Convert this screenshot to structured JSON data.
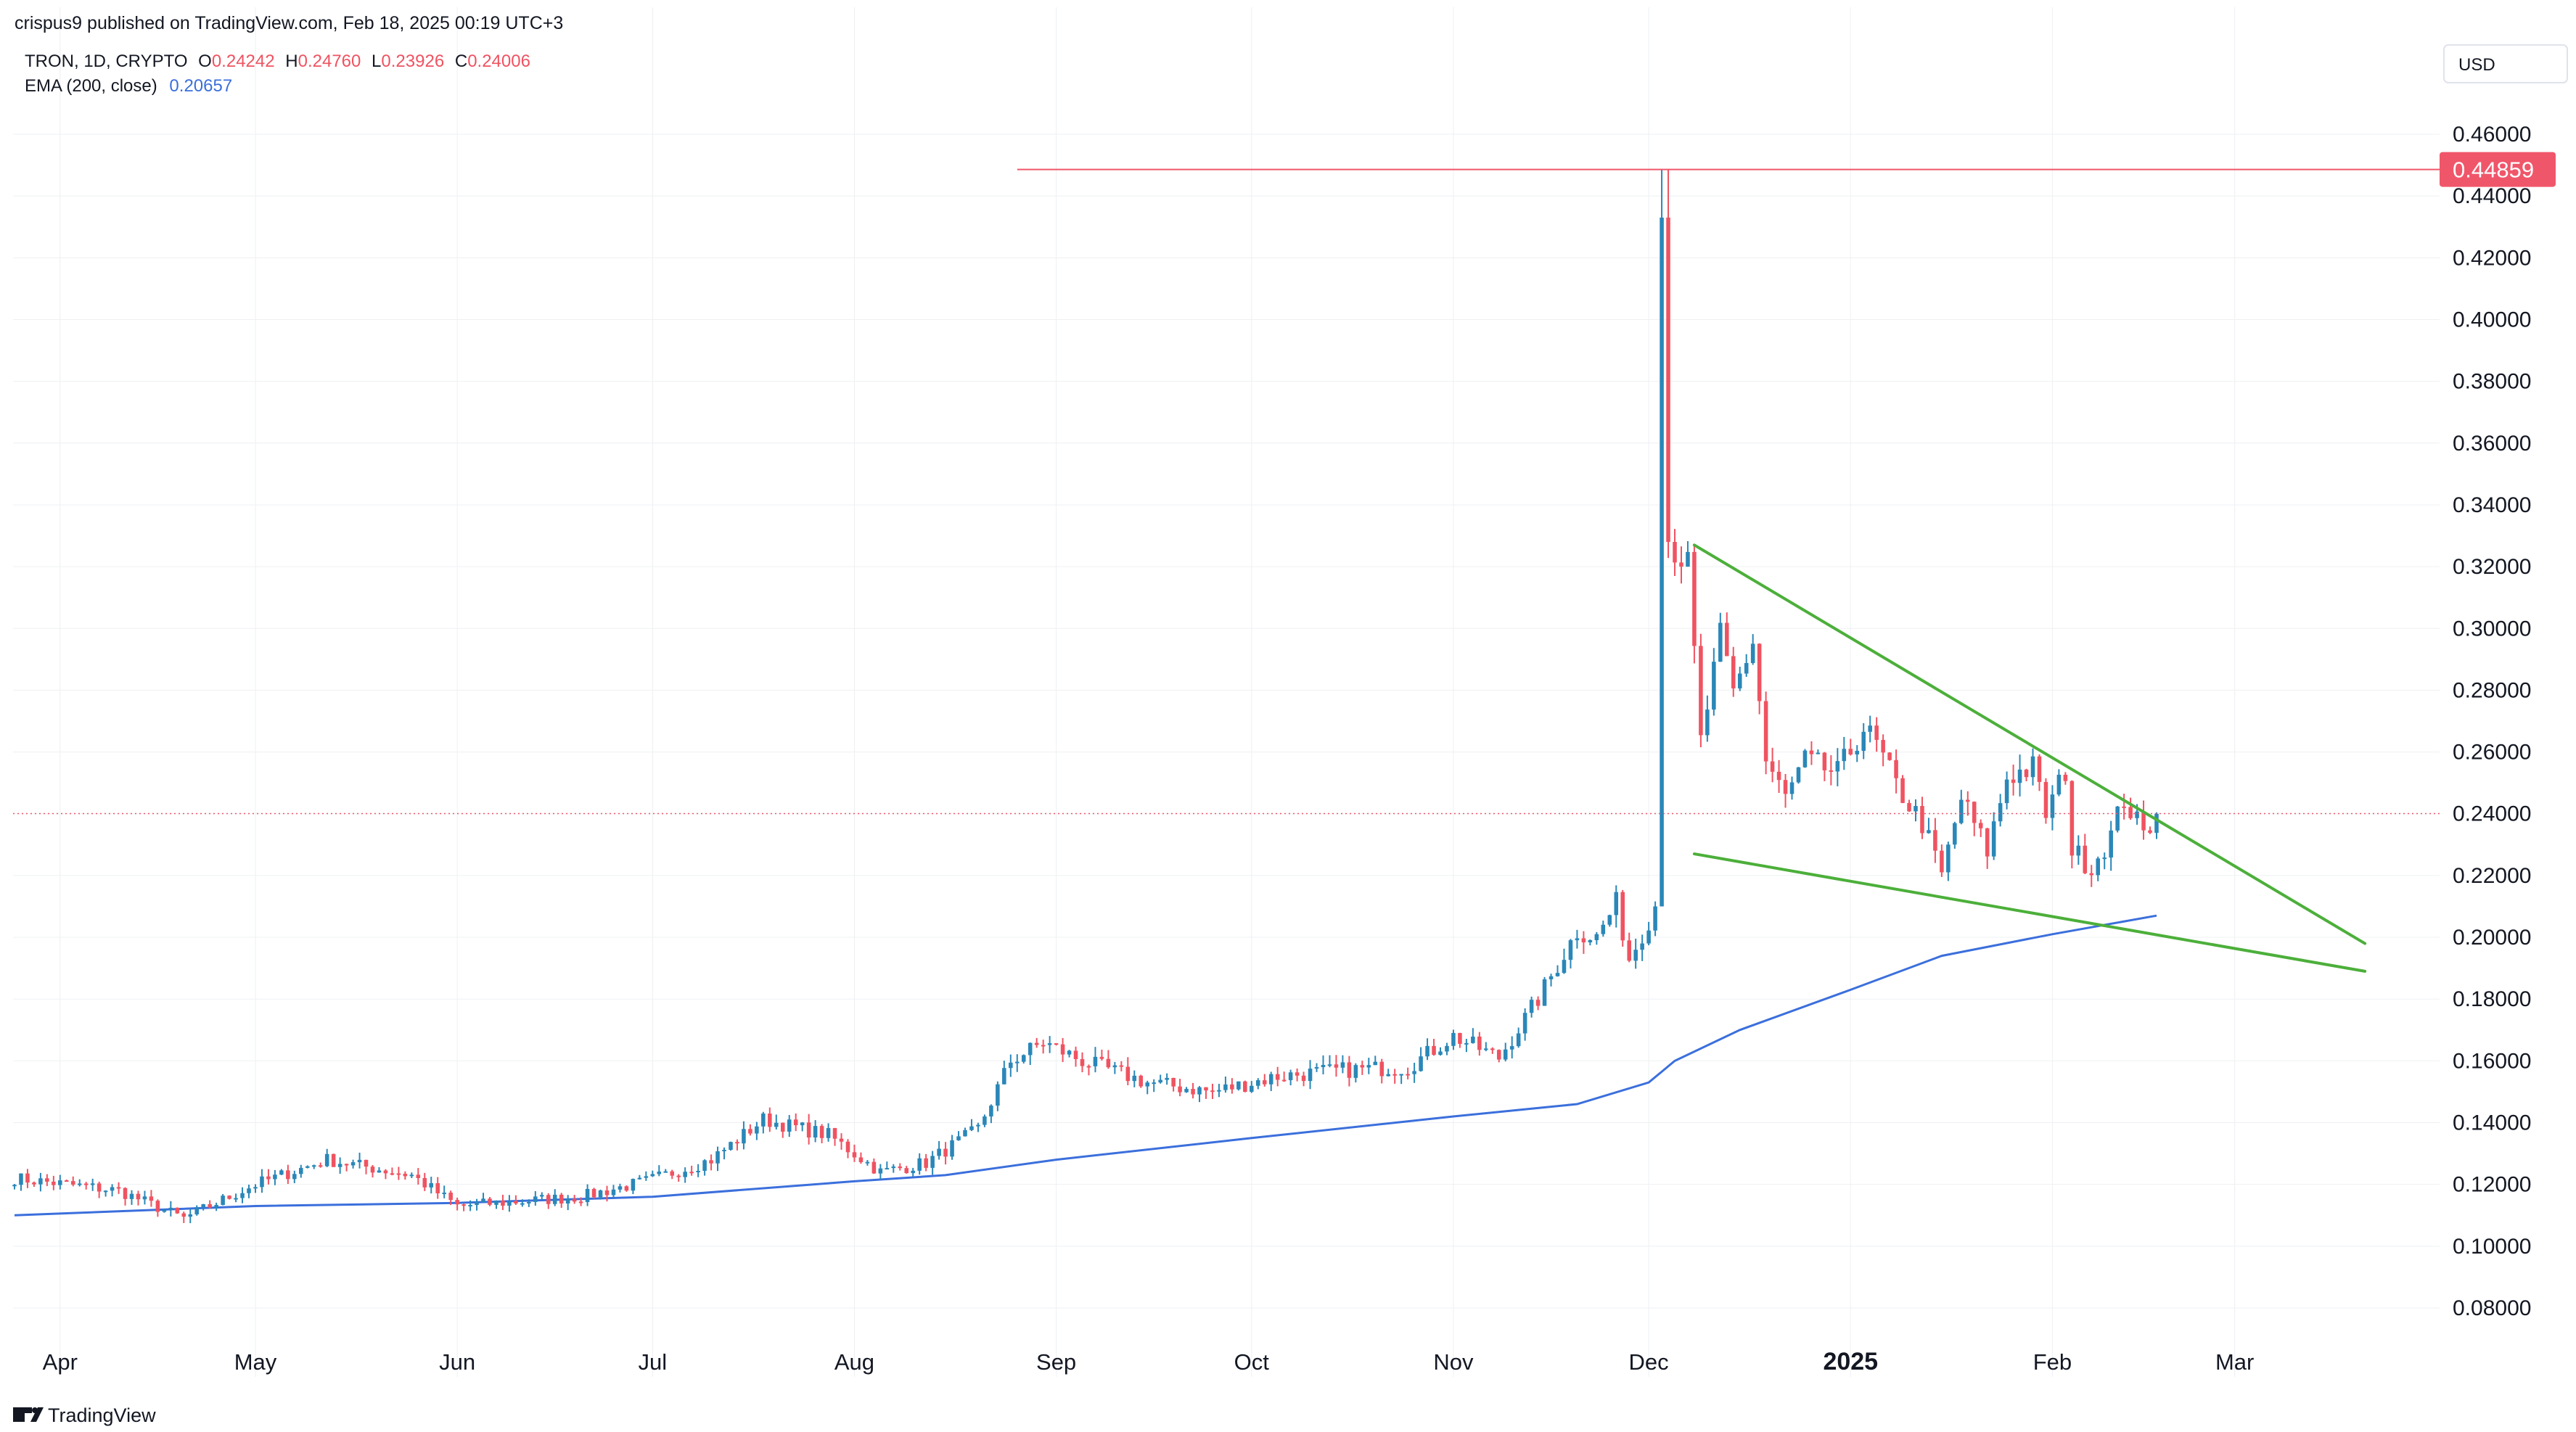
{
  "header": {
    "published": "crispus9 published on TradingView.com, Feb 18, 2025 00:19 UTC+3",
    "symbol": "TRON, 1D, CRYPTO",
    "o_label": "O",
    "o_value": "0.24242",
    "h_label": "H",
    "h_value": "0.24760",
    "l_label": "L",
    "l_value": "0.23926",
    "c_label": "C",
    "c_value": "0.24006",
    "ema_label": "EMA (200, close)",
    "ema_value": "0.20657"
  },
  "currency": "USD",
  "footer": {
    "brand": "TradingView"
  },
  "colors": {
    "up": "#2a87b8",
    "down": "#ef5361",
    "ema": "#3b6fdc",
    "trend": "#4caf3a",
    "resistance": "#f0566a",
    "grid": "#eef0f3"
  },
  "chart_data": {
    "type": "candlestick",
    "x_axis": {
      "labels": [
        "Apr",
        "May",
        "Jun",
        "Jul",
        "Aug",
        "Sep",
        "Oct",
        "Nov",
        "Dec",
        "2025",
        "Feb",
        "Mar"
      ],
      "bold": [
        "2025"
      ]
    },
    "y_axis": {
      "ticks": [
        "0.46000",
        "0.44000",
        "0.42000",
        "0.40000",
        "0.38000",
        "0.36000",
        "0.34000",
        "0.32000",
        "0.30000",
        "0.28000",
        "0.26000",
        "0.24000",
        "0.22000",
        "0.20000",
        "0.18000",
        "0.16000",
        "0.14000",
        "0.12000",
        "0.10000",
        "0.08000"
      ],
      "range": [
        0.07,
        0.47
      ]
    },
    "resistance": {
      "value": 0.44859,
      "label": "0.44859",
      "start_date": "2024-08-26"
    },
    "last_close": 0.24006,
    "ema200": {
      "name": "EMA (200, close)",
      "points": [
        [
          "2024-03-25",
          0.11
        ],
        [
          "2024-05-01",
          0.113
        ],
        [
          "2024-06-01",
          0.114
        ],
        [
          "2024-07-01",
          0.116
        ],
        [
          "2024-08-01",
          0.121
        ],
        [
          "2024-08-15",
          0.123
        ],
        [
          "2024-09-01",
          0.128
        ],
        [
          "2024-10-01",
          0.135
        ],
        [
          "2024-11-01",
          0.142
        ],
        [
          "2024-11-20",
          0.146
        ],
        [
          "2024-12-01",
          0.153
        ],
        [
          "2024-12-05",
          0.16
        ],
        [
          "2024-12-15",
          0.17
        ],
        [
          "2025-01-01",
          0.183
        ],
        [
          "2025-01-15",
          0.194
        ],
        [
          "2025-02-01",
          0.201
        ],
        [
          "2025-02-17",
          0.207
        ]
      ]
    },
    "trendlines": [
      {
        "name": "upper",
        "from": [
          "2024-12-08",
          0.327
        ],
        "to": [
          "2025-03-21",
          0.198
        ]
      },
      {
        "name": "lower",
        "from": [
          "2024-12-08",
          0.227
        ],
        "to": [
          "2025-03-21",
          0.189
        ]
      }
    ],
    "anchors": [
      [
        "2024-03-25",
        0.122
      ],
      [
        "2024-04-10",
        0.118
      ],
      [
        "2024-04-20",
        0.109
      ],
      [
        "2024-05-01",
        0.12
      ],
      [
        "2024-05-12",
        0.128
      ],
      [
        "2024-05-25",
        0.123
      ],
      [
        "2024-06-01",
        0.113
      ],
      [
        "2024-06-20",
        0.116
      ],
      [
        "2024-06-30",
        0.121
      ],
      [
        "2024-07-10",
        0.128
      ],
      [
        "2024-07-18",
        0.141
      ],
      [
        "2024-07-28",
        0.136
      ],
      [
        "2024-08-05",
        0.124
      ],
      [
        "2024-08-12",
        0.127
      ],
      [
        "2024-08-20",
        0.138
      ],
      [
        "2024-08-25",
        0.16
      ],
      [
        "2024-08-30",
        0.166
      ],
      [
        "2024-09-05",
        0.16
      ],
      [
        "2024-09-15",
        0.153
      ],
      [
        "2024-09-25",
        0.15
      ],
      [
        "2024-10-05",
        0.155
      ],
      [
        "2024-10-15",
        0.157
      ],
      [
        "2024-10-25",
        0.158
      ],
      [
        "2024-11-01",
        0.168
      ],
      [
        "2024-11-08",
        0.161
      ],
      [
        "2024-11-14",
        0.18
      ],
      [
        "2024-11-20",
        0.202
      ],
      [
        "2024-11-23",
        0.2
      ],
      [
        "2024-11-26",
        0.211
      ],
      [
        "2024-11-28",
        0.193
      ],
      [
        "2024-12-02",
        0.21
      ],
      [
        "2024-12-03",
        0.433
      ],
      [
        "2024-12-04",
        0.329
      ],
      [
        "2024-12-05",
        0.326
      ],
      [
        "2024-12-07",
        0.32
      ],
      [
        "2024-12-09",
        0.263
      ],
      [
        "2024-12-12",
        0.297
      ],
      [
        "2024-12-14",
        0.279
      ],
      [
        "2024-12-17",
        0.296
      ],
      [
        "2024-12-19",
        0.257
      ],
      [
        "2024-12-22",
        0.245
      ],
      [
        "2024-12-25",
        0.257
      ],
      [
        "2024-12-30",
        0.253
      ],
      [
        "2025-01-03",
        0.268
      ],
      [
        "2025-01-05",
        0.262
      ],
      [
        "2025-01-08",
        0.249
      ],
      [
        "2025-01-12",
        0.237
      ],
      [
        "2025-01-15",
        0.22
      ],
      [
        "2025-01-18",
        0.245
      ],
      [
        "2025-01-22",
        0.228
      ],
      [
        "2025-01-25",
        0.252
      ],
      [
        "2025-01-29",
        0.255
      ],
      [
        "2025-01-31",
        0.24
      ],
      [
        "2025-02-03",
        0.254
      ],
      [
        "2025-02-04",
        0.228
      ],
      [
        "2025-02-07",
        0.223
      ],
      [
        "2025-02-10",
        0.233
      ],
      [
        "2025-02-12",
        0.245
      ],
      [
        "2025-02-15",
        0.233
      ],
      [
        "2025-02-17",
        0.24
      ]
    ]
  }
}
